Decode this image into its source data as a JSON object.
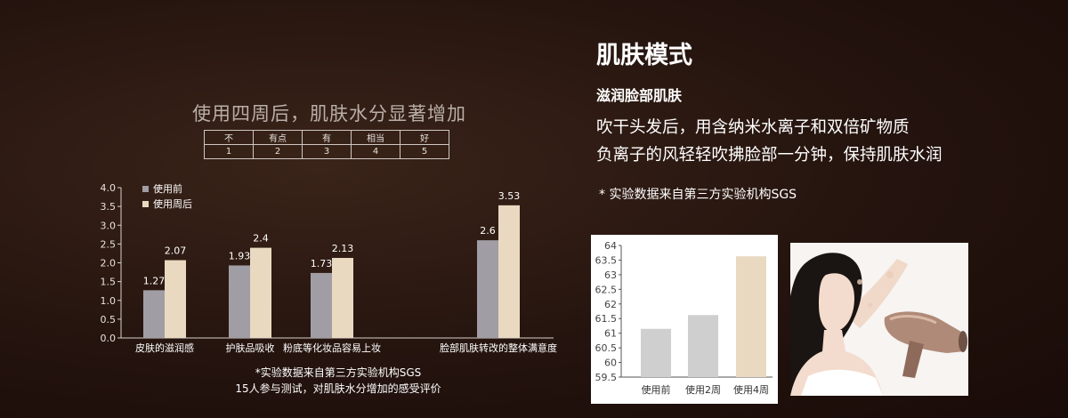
{
  "chart_data": [
    {
      "type": "bar",
      "title": "使用四周后，肌肤水分显著增加",
      "scale_table": {
        "labels": [
          "不",
          "有点",
          "有",
          "相当",
          "好"
        ],
        "numbers": [
          "1",
          "2",
          "3",
          "4",
          "5"
        ]
      },
      "categories": [
        "皮肤的滋润感",
        "护肤品吸收",
        "粉底等化妆品容易上妆",
        "脸部肌肤转改的整体满意度"
      ],
      "series": [
        {
          "name": "使用前",
          "values": [
            1.27,
            1.93,
            1.73,
            2.6
          ],
          "value_labels": [
            "1.27",
            "1.93",
            "1.73",
            "2.6"
          ],
          "color": "#a19da4"
        },
        {
          "name": "使用周后",
          "values": [
            2.07,
            2.4,
            2.13,
            3.53
          ],
          "value_labels": [
            "2.07",
            "2.4",
            "2.13",
            "3.53"
          ],
          "color": "#e9d9c1"
        }
      ],
      "ylim": [
        0,
        4.0
      ],
      "yticks": [
        "0.0",
        "0.5",
        "1.0",
        "1.5",
        "2.0",
        "2.5",
        "3.0",
        "3.5",
        "4.0"
      ],
      "legend": "top-left",
      "notes": [
        "*实验数据来自第三方实验机构SGS",
        "15人参与测试，对肌肤水分增加的感受评价"
      ]
    },
    {
      "type": "bar",
      "categories": [
        "使用前",
        "使用2周",
        "使用4周"
      ],
      "values": [
        61.15,
        61.62,
        63.63
      ],
      "colors": [
        "#cfcfcf",
        "#cfcfcf",
        "#e9d9c1"
      ],
      "ylim": [
        59.5,
        64
      ],
      "yticks": [
        "59.5",
        "60",
        "60.5",
        "61",
        "61.5",
        "62",
        "62.5",
        "63",
        "63.5",
        "64"
      ],
      "grid": false
    }
  ],
  "info": {
    "title": "肌肤模式",
    "subtitle": "滋润脸部肌肤",
    "description": [
      "吹干头发后，用含纳米水离子和双倍矿物质",
      "负离子的风轻轻吹拂脸部一分钟，保持肌肤水润"
    ],
    "note": "* 实验数据来自第三方实验机构SGS"
  },
  "colors": {
    "background": "#24130e",
    "before_bar": "#a19da4",
    "after_bar": "#e9d9c1",
    "right_panel": "#ffffff"
  }
}
